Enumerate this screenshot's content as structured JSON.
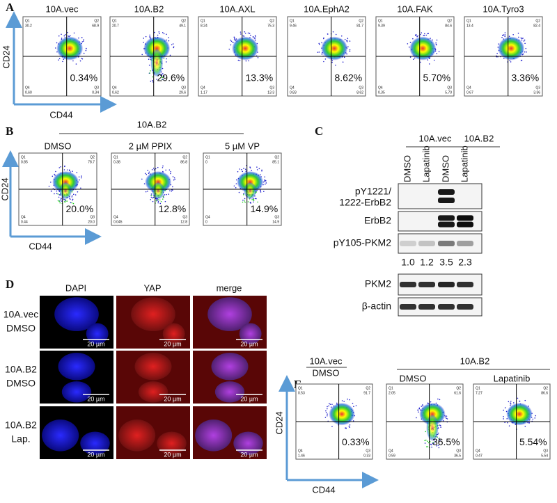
{
  "quadrant_names": [
    "Q1",
    "Q2",
    "Q4",
    "Q3"
  ],
  "panels": {
    "A": {
      "label": "A",
      "y_axis": "CD24",
      "x_axis": "CD44",
      "plots": [
        {
          "title": "10A.vec",
          "percent": "0.34%",
          "q1": "30.2",
          "q2": "68.9",
          "q4": "0.60",
          "q3": "0.34"
        },
        {
          "title": "10A.B2",
          "percent": "29.6%",
          "q1": "20.7",
          "q2": "49.1",
          "q4": "0.62",
          "q3": "29.6"
        },
        {
          "title": "10A.AXL",
          "percent": "13.3%",
          "q1": "8.24",
          "q2": "75.3",
          "q4": "1.17",
          "q3": "13.3"
        },
        {
          "title": "10A.EphA2",
          "percent": "8.62%",
          "q1": "9.46",
          "q2": "81.7",
          "q4": "0.83",
          "q3": "8.62"
        },
        {
          "title": "10A.FAK",
          "percent": "5.70%",
          "q1": "9.39",
          "q2": "84.6",
          "q4": "0.35",
          "q3": "5.70"
        },
        {
          "title": "10A.Tyro3",
          "percent": "3.36%",
          "q1": "13.4",
          "q2": "82.4",
          "q4": "0.67",
          "q3": "3.36"
        }
      ]
    },
    "B": {
      "label": "B",
      "header": "10A.B2",
      "y_axis": "CD24",
      "x_axis": "CD44",
      "plots": [
        {
          "title": "DMSO",
          "percent": "20.0%",
          "q1": "0.85",
          "q2": "78.7",
          "q4": "0.44",
          "q3": "20.0"
        },
        {
          "title": "2 µM PPIX",
          "percent": "12.8%",
          "q1": "0.38",
          "q2": "86.8",
          "q4": "0.045",
          "q3": "12.8"
        },
        {
          "title": "5 µM VP",
          "percent": "14.9%",
          "q1": "0",
          "q2": "85.1",
          "q4": "0",
          "q3": "14.9"
        }
      ]
    },
    "C": {
      "label": "C",
      "groups": [
        "10A.vec",
        "10A.B2"
      ],
      "lanes": [
        "DMSO",
        "Lapatinib",
        "DMSO",
        "Lapatinib"
      ],
      "rows": [
        [
          "pY1221/",
          "1222-ErbB2"
        ],
        [
          "ErbB2"
        ],
        [
          "pY105-PKM2"
        ],
        [
          "PKM2"
        ],
        [
          "β-actin"
        ]
      ],
      "quantification": [
        "1.0",
        "1.2",
        "3.5",
        "2.3"
      ]
    },
    "D": {
      "label": "D",
      "columns": [
        "DAPI",
        "YAP",
        "merge"
      ],
      "rows": [
        [
          "10A.vec",
          "DMSO"
        ],
        [
          "10A.B2",
          "DMSO"
        ],
        [
          "10A.B2",
          "Lap."
        ]
      ],
      "scale_bar": "20 µm"
    },
    "E": {
      "label": "E",
      "headers": [
        [
          "10A.vec",
          "DMSO"
        ],
        [
          "10A.B2"
        ]
      ],
      "subheaders": [
        "DMSO",
        "Lapatinib"
      ],
      "y_axis": "CD24",
      "x_axis": "CD44",
      "plots": [
        {
          "percent": "0.33%",
          "q1": "0.53",
          "q2": "91.7",
          "q4": "1.46",
          "q3": "0.33"
        },
        {
          "percent": "36.5%",
          "q1": "2.05",
          "q2": "61.6",
          "q4": "0.59",
          "q3": "36.5"
        },
        {
          "percent": "5.54%",
          "q1": "7.27",
          "q2": "86.6",
          "q4": "0.47",
          "q3": "5.54"
        }
      ]
    }
  }
}
